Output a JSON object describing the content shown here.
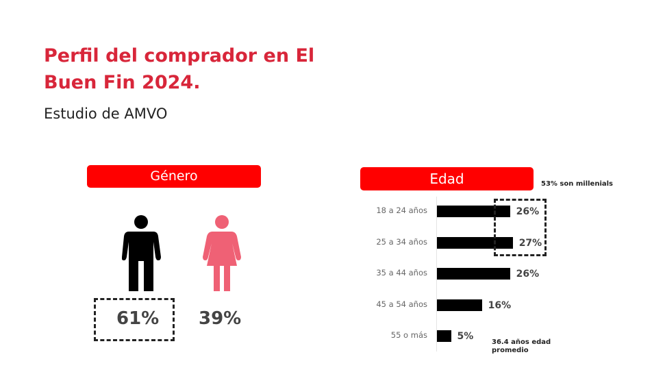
{
  "header": {
    "title": "Perfil del comprador en El Buen Fin 2024.",
    "subtitle": "Estudio de AMVO"
  },
  "gender": {
    "label": "Género",
    "men": {
      "value": "61%",
      "icon": "man-icon",
      "color": "#000000"
    },
    "women": {
      "value": "39%",
      "icon": "woman-icon",
      "color": "#ef6175"
    }
  },
  "age": {
    "label": "Edad",
    "note_millennials": "53% son millenials",
    "note_average": "36.4 años edad promedio"
  },
  "colors": {
    "accent": "#ff0000",
    "title": "#d8263a",
    "bar": "#000000"
  },
  "chart_data": {
    "type": "bar",
    "orientation": "horizontal",
    "title": "Edad",
    "categories": [
      "18 a 24 años",
      "25 a 34 años",
      "35 a 44 años",
      "45 a 54 años",
      "55 o más"
    ],
    "values": [
      26,
      27,
      26,
      16,
      5
    ],
    "value_labels": [
      "26%",
      "27%",
      "26%",
      "16%",
      "5%"
    ],
    "unit": "%",
    "grid": false
  }
}
